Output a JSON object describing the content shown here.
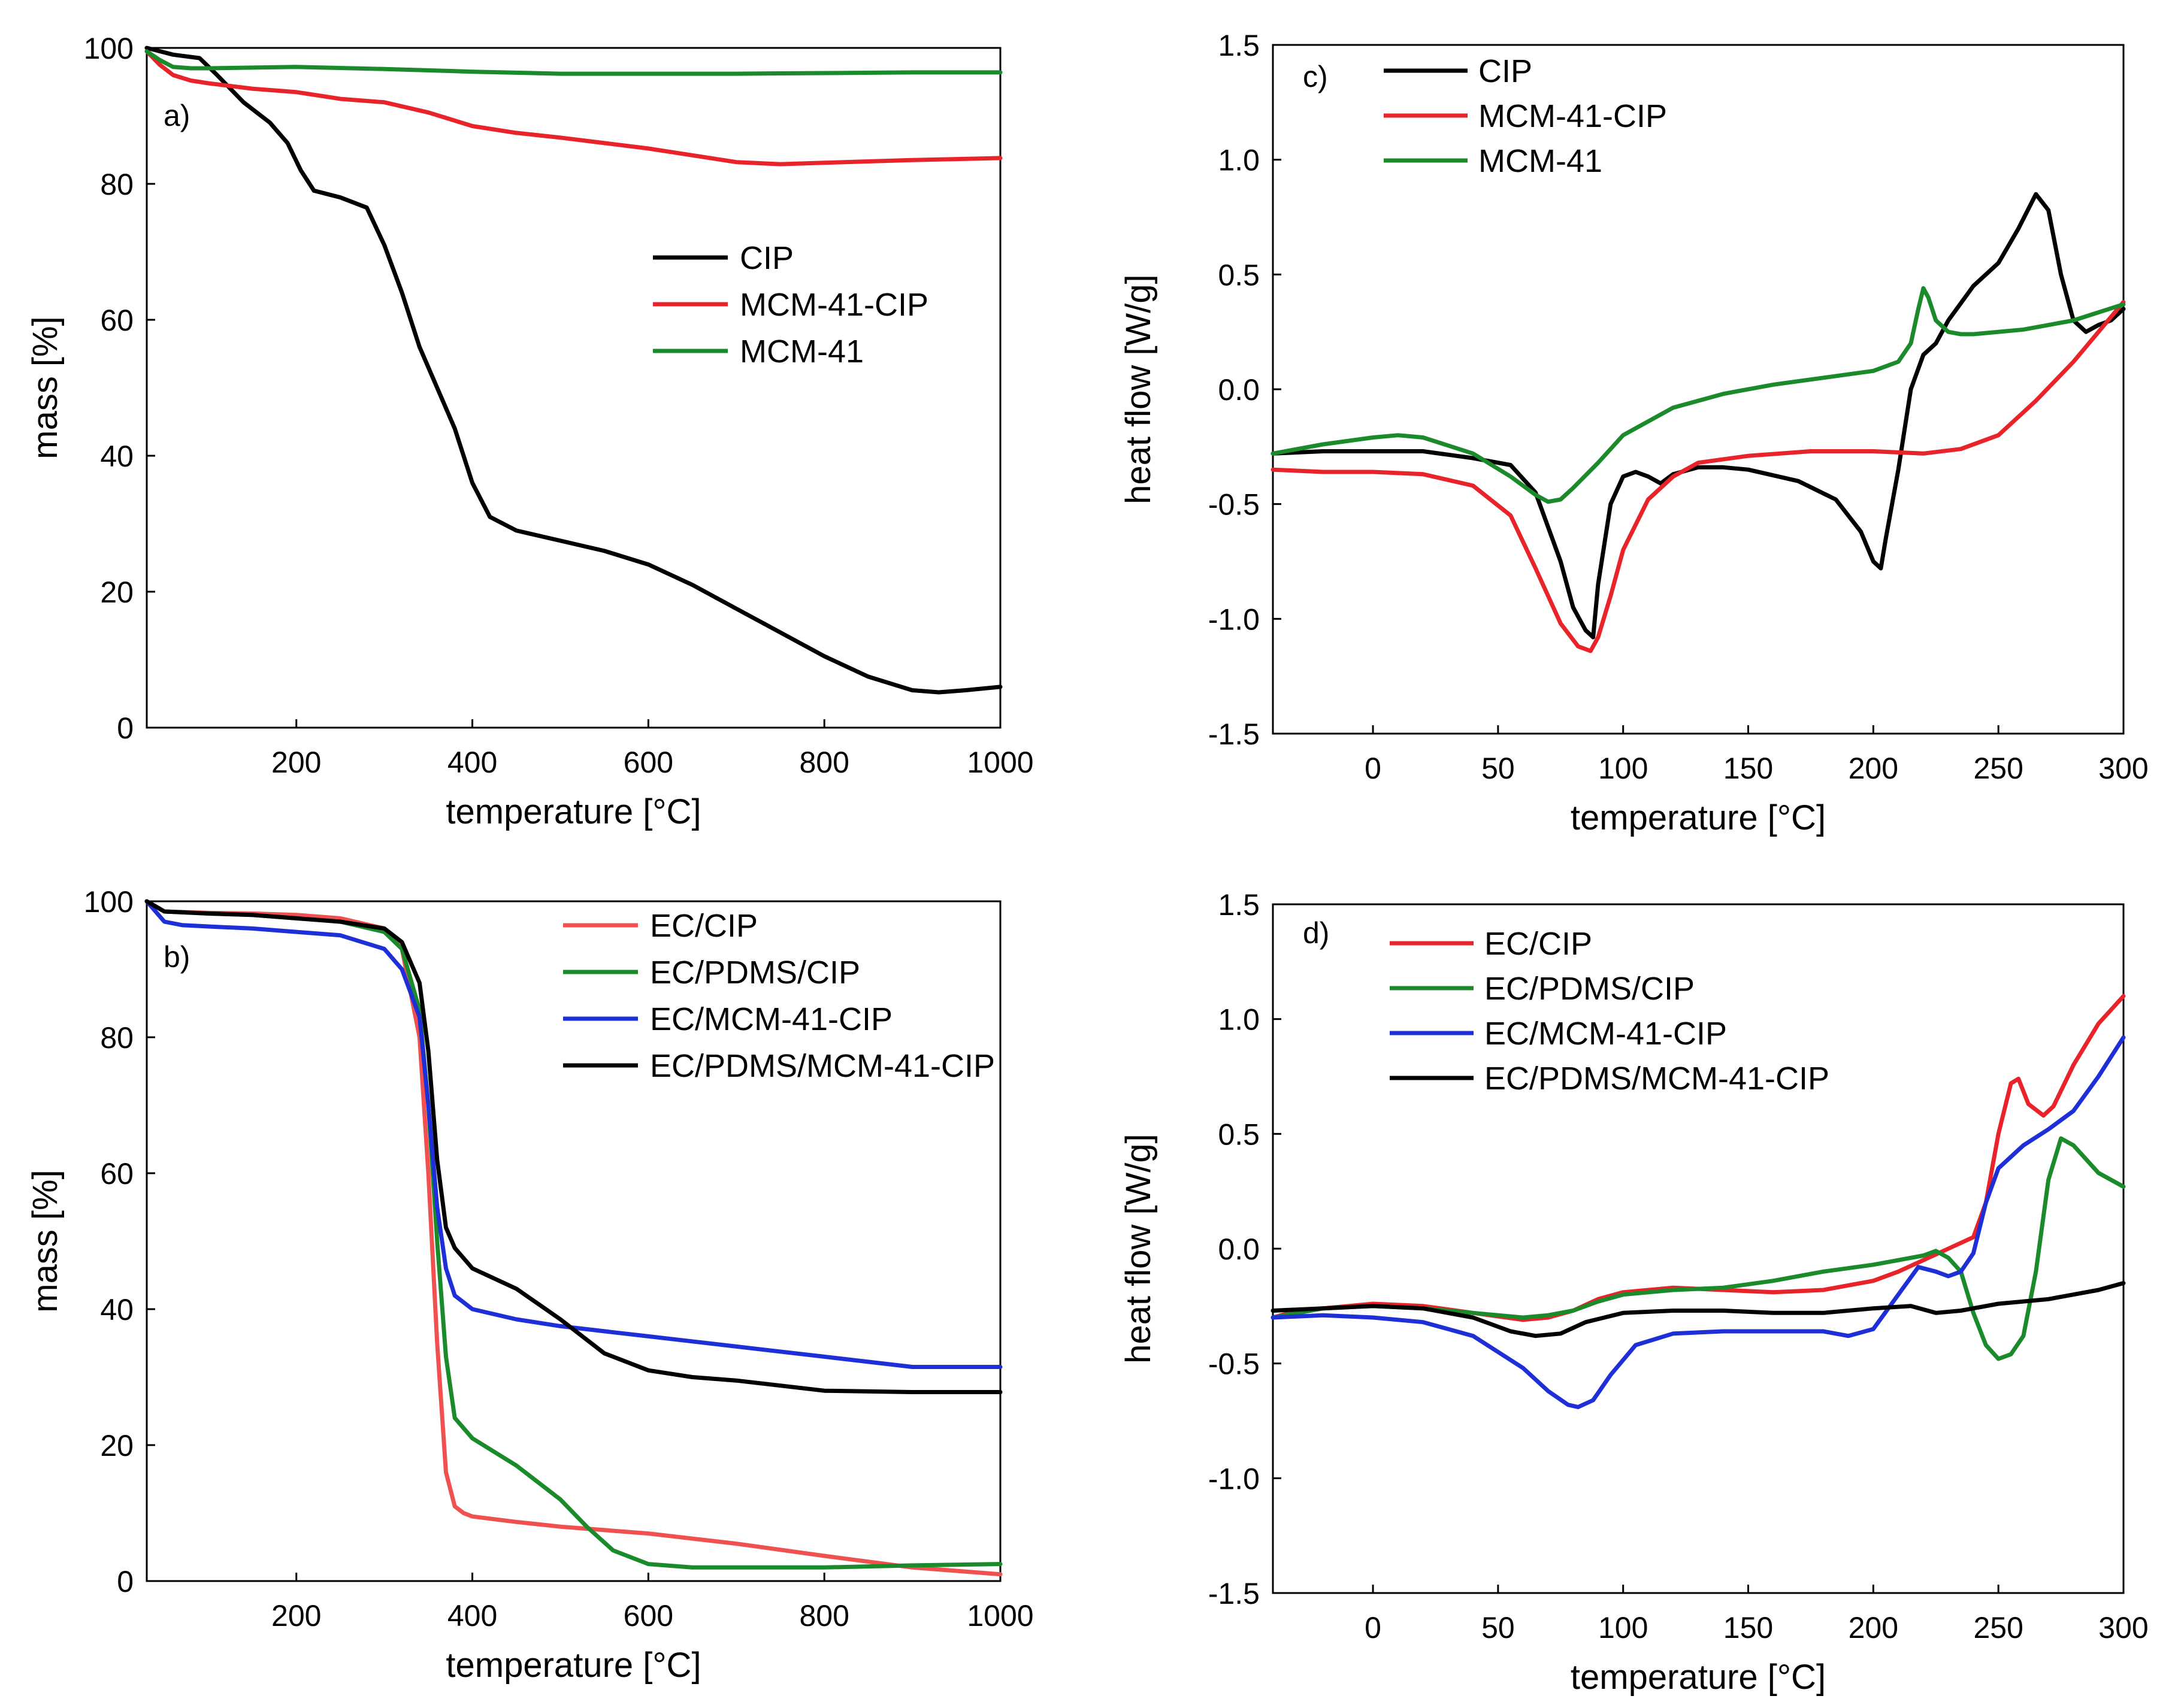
{
  "figure": {
    "background": "#ffffff"
  },
  "chart_data": [
    {
      "id": "a",
      "type": "line",
      "panel_label": "a)",
      "xlabel": "temperature [°C]",
      "ylabel": "mass [%]",
      "xlim": [
        30,
        1000
      ],
      "ylim": [
        0,
        100
      ],
      "xticks": [
        200,
        400,
        600,
        800,
        1000
      ],
      "yticks": [
        0,
        20,
        40,
        60,
        80,
        100
      ],
      "legend_position": "center-right",
      "series": [
        {
          "name": "CIP",
          "color": "#000000",
          "x": [
            30,
            60,
            90,
            110,
            140,
            170,
            190,
            205,
            220,
            250,
            280,
            300,
            320,
            340,
            360,
            380,
            400,
            420,
            450,
            500,
            550,
            600,
            650,
            700,
            750,
            800,
            850,
            900,
            930,
            960,
            1000
          ],
          "y": [
            100,
            99,
            98.5,
            96,
            92,
            89,
            86,
            82,
            79,
            78,
            76.5,
            71,
            64,
            56,
            50,
            44,
            36,
            31,
            29,
            27.5,
            26,
            24,
            21,
            17.5,
            14,
            10.5,
            7.5,
            5.5,
            5.2,
            5.5,
            6
          ]
        },
        {
          "name": "MCM-41-CIP",
          "color": "#e8232a",
          "x": [
            30,
            45,
            60,
            80,
            100,
            150,
            200,
            250,
            300,
            350,
            400,
            450,
            500,
            550,
            600,
            650,
            700,
            750,
            800,
            900,
            1000
          ],
          "y": [
            99.5,
            97.5,
            96,
            95.2,
            94.8,
            94,
            93.5,
            92.5,
            92,
            90.5,
            88.5,
            87.5,
            86.8,
            86,
            85.2,
            84.2,
            83.2,
            82.9,
            83.1,
            83.5,
            83.8
          ]
        },
        {
          "name": "MCM-41",
          "color": "#1a8a2a",
          "x": [
            30,
            45,
            60,
            80,
            100,
            150,
            200,
            300,
            400,
            500,
            600,
            700,
            800,
            900,
            1000
          ],
          "y": [
            99.5,
            98.2,
            97.2,
            97,
            97,
            97.1,
            97.2,
            96.9,
            96.5,
            96.2,
            96.2,
            96.2,
            96.3,
            96.4,
            96.4
          ]
        }
      ]
    },
    {
      "id": "b",
      "type": "line",
      "panel_label": "b)",
      "xlabel": "temperature [°C]",
      "ylabel": "mass [%]",
      "xlim": [
        30,
        1000
      ],
      "ylim": [
        0,
        100
      ],
      "xticks": [
        200,
        400,
        600,
        800,
        1000
      ],
      "yticks": [
        0,
        20,
        40,
        60,
        80,
        100
      ],
      "legend_position": "top-right",
      "series": [
        {
          "name": "EC/CIP",
          "color": "#f05050",
          "x": [
            30,
            50,
            100,
            150,
            200,
            250,
            300,
            320,
            340,
            350,
            360,
            370,
            380,
            390,
            400,
            450,
            500,
            550,
            600,
            700,
            800,
            900,
            1000
          ],
          "y": [
            100,
            98.5,
            98.3,
            98.2,
            98,
            97.5,
            96,
            93,
            80,
            60,
            35,
            16,
            11,
            10,
            9.5,
            8.7,
            8,
            7.5,
            7,
            5.5,
            3.7,
            2,
            1
          ]
        },
        {
          "name": "EC/PDMS/CIP",
          "color": "#1a8a2a",
          "x": [
            30,
            50,
            100,
            150,
            200,
            250,
            300,
            320,
            340,
            350,
            360,
            370,
            380,
            400,
            450,
            500,
            530,
            560,
            600,
            650,
            700,
            800,
            900,
            1000
          ],
          "y": [
            100,
            98.5,
            98.2,
            98,
            97.5,
            97,
            95.5,
            93,
            84,
            70,
            50,
            33,
            24,
            21,
            17,
            12,
            8,
            4.5,
            2.5,
            2,
            2,
            2,
            2.3,
            2.5
          ]
        },
        {
          "name": "EC/MCM-41-CIP",
          "color": "#1e2fd8",
          "x": [
            30,
            50,
            70,
            100,
            150,
            200,
            250,
            300,
            320,
            340,
            350,
            360,
            370,
            380,
            400,
            450,
            500,
            600,
            700,
            800,
            900,
            1000
          ],
          "y": [
            100,
            97,
            96.5,
            96.3,
            96,
            95.5,
            95,
            93,
            90,
            83,
            70,
            55,
            46,
            42,
            40,
            38.5,
            37.5,
            36,
            34.5,
            33,
            31.5,
            31.5
          ]
        },
        {
          "name": "EC/PDMS/MCM-41-CIP",
          "color": "#000000",
          "x": [
            30,
            50,
            100,
            150,
            200,
            250,
            300,
            320,
            340,
            350,
            360,
            370,
            380,
            400,
            450,
            500,
            550,
            600,
            650,
            700,
            800,
            900,
            1000
          ],
          "y": [
            100,
            98.5,
            98.2,
            98,
            97.5,
            97,
            96,
            94,
            88,
            78,
            62,
            52,
            49,
            46,
            43,
            38.5,
            33.5,
            31,
            30,
            29.5,
            28,
            27.8,
            27.8
          ]
        }
      ]
    },
    {
      "id": "c",
      "type": "line",
      "panel_label": "c)",
      "xlabel": "temperature [°C]",
      "ylabel": "heat flow [W/g]",
      "xlim": [
        -40,
        300
      ],
      "ylim": [
        -1.5,
        1.5
      ],
      "xticks": [
        0,
        50,
        100,
        150,
        200,
        250,
        300
      ],
      "yticks": [
        -1.5,
        -1.0,
        -0.5,
        0.0,
        0.5,
        1.0,
        1.5
      ],
      "legend_position": "top-left",
      "series": [
        {
          "name": "CIP",
          "color": "#000000",
          "x": [
            -40,
            -20,
            0,
            20,
            40,
            55,
            65,
            75,
            80,
            85,
            88,
            90,
            95,
            100,
            105,
            110,
            115,
            120,
            130,
            140,
            150,
            170,
            185,
            195,
            200,
            203,
            205,
            210,
            215,
            220,
            225,
            230,
            240,
            250,
            258,
            265,
            270,
            275,
            280,
            285,
            290,
            295,
            300
          ],
          "y": [
            -0.28,
            -0.27,
            -0.27,
            -0.27,
            -0.3,
            -0.33,
            -0.45,
            -0.75,
            -0.95,
            -1.05,
            -1.08,
            -0.85,
            -0.5,
            -0.38,
            -0.36,
            -0.38,
            -0.41,
            -0.37,
            -0.34,
            -0.34,
            -0.35,
            -0.4,
            -0.48,
            -0.62,
            -0.75,
            -0.78,
            -0.65,
            -0.35,
            0.0,
            0.15,
            0.2,
            0.3,
            0.45,
            0.55,
            0.7,
            0.85,
            0.78,
            0.5,
            0.3,
            0.25,
            0.28,
            0.3,
            0.35
          ]
        },
        {
          "name": "MCM-41-CIP",
          "color": "#e8232a",
          "x": [
            -40,
            -20,
            0,
            20,
            40,
            55,
            65,
            75,
            82,
            87,
            90,
            95,
            100,
            110,
            120,
            130,
            150,
            175,
            200,
            220,
            235,
            250,
            265,
            280,
            290,
            300
          ],
          "y": [
            -0.35,
            -0.36,
            -0.36,
            -0.37,
            -0.42,
            -0.55,
            -0.78,
            -1.02,
            -1.12,
            -1.14,
            -1.08,
            -0.9,
            -0.7,
            -0.48,
            -0.38,
            -0.32,
            -0.29,
            -0.27,
            -0.27,
            -0.28,
            -0.26,
            -0.2,
            -0.05,
            0.12,
            0.25,
            0.38
          ]
        },
        {
          "name": "MCM-41",
          "color": "#1a8a2a",
          "x": [
            -40,
            -20,
            0,
            10,
            20,
            40,
            55,
            65,
            70,
            75,
            80,
            90,
            100,
            120,
            140,
            160,
            180,
            200,
            210,
            215,
            218,
            220,
            222,
            225,
            230,
            235,
            240,
            260,
            280,
            300
          ],
          "y": [
            -0.28,
            -0.24,
            -0.21,
            -0.2,
            -0.21,
            -0.28,
            -0.38,
            -0.46,
            -0.49,
            -0.48,
            -0.43,
            -0.32,
            -0.2,
            -0.08,
            -0.02,
            0.02,
            0.05,
            0.08,
            0.12,
            0.2,
            0.35,
            0.44,
            0.4,
            0.3,
            0.25,
            0.24,
            0.24,
            0.26,
            0.3,
            0.37
          ]
        }
      ]
    },
    {
      "id": "d",
      "type": "line",
      "panel_label": "d)",
      "xlabel": "temperature [°C]",
      "ylabel": "heat flow [W/g]",
      "xlim": [
        -40,
        300
      ],
      "ylim": [
        -1.5,
        1.5
      ],
      "xticks": [
        0,
        50,
        100,
        150,
        200,
        250,
        300
      ],
      "yticks": [
        -1.5,
        -1.0,
        -0.5,
        0.0,
        0.5,
        1.0,
        1.5
      ],
      "legend_position": "top-left",
      "series": [
        {
          "name": "EC/CIP",
          "color": "#e8232a",
          "x": [
            -40,
            -30,
            -20,
            0,
            20,
            40,
            60,
            70,
            80,
            90,
            100,
            120,
            140,
            160,
            180,
            200,
            210,
            220,
            230,
            240,
            245,
            250,
            255,
            258,
            262,
            268,
            272,
            280,
            290,
            300
          ],
          "y": [
            -0.3,
            -0.27,
            -0.26,
            -0.24,
            -0.25,
            -0.28,
            -0.31,
            -0.3,
            -0.27,
            -0.22,
            -0.19,
            -0.17,
            -0.18,
            -0.19,
            -0.18,
            -0.14,
            -0.1,
            -0.05,
            0.0,
            0.05,
            0.2,
            0.5,
            0.72,
            0.74,
            0.63,
            0.58,
            0.62,
            0.8,
            0.98,
            1.1
          ]
        },
        {
          "name": "EC/PDMS/CIP",
          "color": "#1a8a2a",
          "x": [
            -40,
            -20,
            0,
            20,
            40,
            60,
            70,
            80,
            90,
            100,
            120,
            140,
            160,
            180,
            200,
            210,
            220,
            225,
            230,
            235,
            240,
            245,
            250,
            255,
            260,
            265,
            270,
            275,
            280,
            290,
            300
          ],
          "y": [
            -0.3,
            -0.26,
            -0.25,
            -0.26,
            -0.28,
            -0.3,
            -0.29,
            -0.27,
            -0.23,
            -0.2,
            -0.18,
            -0.17,
            -0.14,
            -0.1,
            -0.07,
            -0.05,
            -0.03,
            -0.01,
            -0.04,
            -0.1,
            -0.28,
            -0.42,
            -0.48,
            -0.46,
            -0.38,
            -0.1,
            0.3,
            0.48,
            0.45,
            0.33,
            0.27
          ]
        },
        {
          "name": "EC/MCM-41-CIP",
          "color": "#1e2fd8",
          "x": [
            -40,
            -20,
            0,
            20,
            40,
            60,
            70,
            78,
            82,
            88,
            95,
            105,
            120,
            140,
            160,
            180,
            190,
            200,
            210,
            218,
            225,
            230,
            235,
            240,
            245,
            250,
            260,
            270,
            280,
            290,
            300
          ],
          "y": [
            -0.3,
            -0.29,
            -0.3,
            -0.32,
            -0.38,
            -0.52,
            -0.62,
            -0.68,
            -0.69,
            -0.66,
            -0.55,
            -0.42,
            -0.37,
            -0.36,
            -0.36,
            -0.36,
            -0.38,
            -0.35,
            -0.2,
            -0.08,
            -0.1,
            -0.12,
            -0.1,
            -0.02,
            0.2,
            0.35,
            0.45,
            0.52,
            0.6,
            0.75,
            0.92
          ]
        },
        {
          "name": "EC/PDMS/MCM-41-CIP",
          "color": "#000000",
          "x": [
            -40,
            -20,
            0,
            20,
            40,
            55,
            65,
            75,
            85,
            100,
            120,
            140,
            160,
            180,
            200,
            215,
            225,
            235,
            250,
            270,
            290,
            300
          ],
          "y": [
            -0.27,
            -0.26,
            -0.25,
            -0.26,
            -0.3,
            -0.36,
            -0.38,
            -0.37,
            -0.32,
            -0.28,
            -0.27,
            -0.27,
            -0.28,
            -0.28,
            -0.26,
            -0.25,
            -0.28,
            -0.27,
            -0.24,
            -0.22,
            -0.18,
            -0.15
          ]
        }
      ]
    }
  ]
}
